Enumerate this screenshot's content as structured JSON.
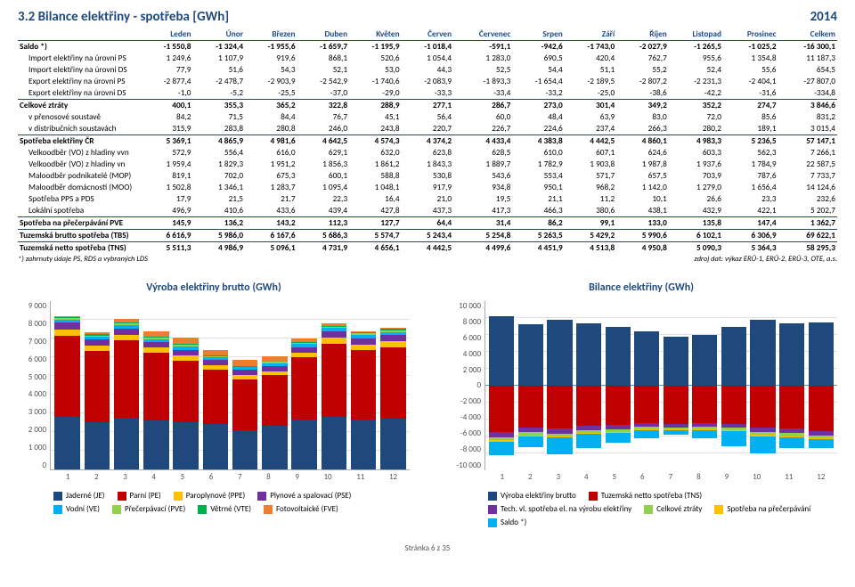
{
  "header": {
    "title": "3.2 Bilance elektřiny - spotřeba [GWh]",
    "year": "2014"
  },
  "months": [
    "Leden",
    "Únor",
    "Březen",
    "Duben",
    "Květen",
    "Červen",
    "Červenec",
    "Srpen",
    "Září",
    "Říjen",
    "Listopad",
    "Prosinec",
    "Celkem"
  ],
  "rows": [
    {
      "label": "Saldo *)",
      "bold": true,
      "vals": [
        "-1 550,8",
        "-1 324,4",
        "-1 955,6",
        "-1 659,7",
        "-1 195,9",
        "-1 018,4",
        "-591,1",
        "-942,6",
        "-1 743,0",
        "-2 027,9",
        "-1 265,5",
        "-1 025,2",
        "-16 300,1"
      ]
    },
    {
      "label": "Import elektřiny na úrovni PS",
      "indent": 1,
      "vals": [
        "1 249,6",
        "1 107,9",
        "919,6",
        "868,1",
        "520,6",
        "1 054,4",
        "1 283,0",
        "690,5",
        "420,4",
        "762,7",
        "955,6",
        "1 354,8",
        "11 187,3"
      ]
    },
    {
      "label": "Import elektřiny na úrovni DS",
      "indent": 1,
      "vals": [
        "77,9",
        "51,6",
        "54,3",
        "52,1",
        "53,0",
        "44,3",
        "52,5",
        "54,4",
        "51,1",
        "55,2",
        "52,4",
        "55,6",
        "654,5"
      ]
    },
    {
      "label": "Export elektřiny na úrovni PS",
      "indent": 1,
      "vals": [
        "-2 877,4",
        "-2 478,7",
        "-2 903,9",
        "-2 542,9",
        "-1 740,6",
        "-2 083,9",
        "-1 893,3",
        "-1 654,4",
        "-2 189,5",
        "-2 807,2",
        "-2 231,3",
        "-2 404,1",
        "-27 807,0"
      ]
    },
    {
      "label": "Export elektřiny na úrovni DS",
      "indent": 1,
      "vals": [
        "-1,0",
        "-5,2",
        "-25,5",
        "-37,0",
        "-29,0",
        "-33,3",
        "-33,4",
        "-33,2",
        "-25,0",
        "-38,6",
        "-42,2",
        "-31,6",
        "-334,8"
      ]
    },
    {
      "label": "Celkové ztráty",
      "bold": true,
      "line": true,
      "vals": [
        "400,1",
        "355,3",
        "365,2",
        "322,8",
        "288,9",
        "277,1",
        "286,7",
        "273,0",
        "301,4",
        "349,2",
        "352,2",
        "274,7",
        "3 846,6"
      ]
    },
    {
      "label": "v přenosové soustavě",
      "indent": 1,
      "vals": [
        "84,2",
        "71,5",
        "84,4",
        "76,7",
        "45,1",
        "56,4",
        "60,0",
        "48,4",
        "63,9",
        "83,0",
        "72,0",
        "85,6",
        "831,2"
      ]
    },
    {
      "label": "v distribučních soustavách",
      "indent": 1,
      "vals": [
        "315,9",
        "283,8",
        "280,8",
        "246,0",
        "243,8",
        "220,7",
        "226,7",
        "224,6",
        "237,4",
        "266,3",
        "280,2",
        "189,1",
        "3 015,4"
      ]
    },
    {
      "label": "Spotřeba elektřiny ČR",
      "bold": true,
      "line": true,
      "vals": [
        "5 369,1",
        "4 865,9",
        "4 981,6",
        "4 642,5",
        "4 574,3",
        "4 374,2",
        "4 433,4",
        "4 383,8",
        "4 442,5",
        "4 860,1",
        "4 983,3",
        "5 236,5",
        "57 147,1"
      ]
    },
    {
      "label": "Velkoodběr (VO) z hladiny vvn",
      "indent": 1,
      "vals": [
        "572,9",
        "556,4",
        "616,0",
        "629,1",
        "632,0",
        "623,8",
        "628,5",
        "610,0",
        "607,1",
        "624,6",
        "603,3",
        "562,3",
        "7 266,1"
      ]
    },
    {
      "label": "Velkoodběr (VO) z hladiny vn",
      "indent": 1,
      "vals": [
        "1 959,4",
        "1 829,3",
        "1 951,2",
        "1 856,3",
        "1 861,2",
        "1 843,3",
        "1 889,7",
        "1 782,9",
        "1 903,8",
        "1 987,8",
        "1 937,6",
        "1 784,9",
        "22 587,5"
      ]
    },
    {
      "label": "Maloodběr podnikatelé (MOP)",
      "indent": 1,
      "vals": [
        "819,1",
        "702,0",
        "675,3",
        "600,1",
        "588,8",
        "530,8",
        "543,6",
        "553,4",
        "571,7",
        "657,5",
        "703,9",
        "787,6",
        "7 733,7"
      ]
    },
    {
      "label": "Maloodběr domácnosti (MOO)",
      "indent": 1,
      "vals": [
        "1 502,8",
        "1 346,1",
        "1 283,7",
        "1 095,4",
        "1 048,1",
        "917,9",
        "934,8",
        "950,1",
        "968,2",
        "1 142,0",
        "1 279,0",
        "1 656,4",
        "14 124,6"
      ]
    },
    {
      "label": "Spotřeba PPS a PDS",
      "indent": 1,
      "vals": [
        "17,9",
        "21,5",
        "21,7",
        "22,3",
        "16,4",
        "21,0",
        "19,5",
        "21,1",
        "11,2",
        "10,1",
        "26,6",
        "23,3",
        "232,6"
      ]
    },
    {
      "label": "Lokální spotřeba",
      "indent": 1,
      "vals": [
        "496,9",
        "410,6",
        "433,6",
        "439,4",
        "427,8",
        "437,3",
        "417,3",
        "466,3",
        "380,6",
        "438,1",
        "432,9",
        "422,1",
        "5 202,7"
      ]
    },
    {
      "label": "Spotřeba na přečerpávání PVE",
      "bold": true,
      "line": true,
      "vals": [
        "145,9",
        "136,2",
        "143,2",
        "112,3",
        "127,7",
        "64,4",
        "31,4",
        "86,2",
        "99,1",
        "133,0",
        "135,8",
        "147,4",
        "1 362,7"
      ]
    },
    {
      "label": "Tuzemská brutto spotřeba (TBS)",
      "bold": true,
      "line": true,
      "vals": [
        "6 616,9",
        "5 986,0",
        "6 167,6",
        "5 686,3",
        "5 574,7",
        "5 243,4",
        "5 254,8",
        "5 263,5",
        "5 429,2",
        "5 990,6",
        "6 102,1",
        "6 306,9",
        "69 622,1"
      ]
    },
    {
      "label": "Tuzemská netto spotřeba (TNS)",
      "bold": true,
      "line": true,
      "vals": [
        "5 511,3",
        "4 986,9",
        "5 096,1",
        "4 731,9",
        "4 656,1",
        "4 442,5",
        "4 499,6",
        "4 451,9",
        "4 513,8",
        "4 950,8",
        "5 090,3",
        "5 364,3",
        "58 295,3"
      ]
    }
  ],
  "footnote_left": "*) zahrnuty údaje PS, RDS a vybraných LDS",
  "footnote_right": "zdroj dat: výkaz ERÚ-1, ERÚ-2, ERÚ-3, OTE, a.s.",
  "page_footer": "Stránka 6 z 35",
  "chart1": {
    "title": "Výroba elektřiny brutto (GWh)",
    "ylim": [
      0,
      9000
    ],
    "yticks": [
      0,
      1000,
      2000,
      3000,
      4000,
      5000,
      6000,
      7000,
      8000,
      9000
    ],
    "ytick_labels": [
      "0",
      "1 000",
      "2 000",
      "3 000",
      "4 000",
      "5 000",
      "6 000",
      "7 000",
      "8 000",
      "9 000"
    ],
    "height": 190,
    "colors": {
      "je": "#1f497d",
      "pe": "#c00000",
      "ppe": "#ffc000",
      "pse": "#7030a0",
      "ve": "#00b0f0",
      "pve": "#92d050",
      "vte": "#00b050",
      "fve": "#ed7d31"
    },
    "series_order": [
      "je",
      "pe",
      "ppe",
      "pse",
      "ve",
      "pve",
      "vte",
      "fve"
    ],
    "legend": [
      {
        "k": "je",
        "label": "Jaderné (JE)"
      },
      {
        "k": "pe",
        "label": "Parní (PE)"
      },
      {
        "k": "ppe",
        "label": "Paroplynové (PPE)"
      },
      {
        "k": "pse",
        "label": "Plynové a spalovací (PSE)"
      },
      {
        "k": "ve",
        "label": "Vodní (VE)"
      },
      {
        "k": "pve",
        "label": "Přečerpávací (PVE)"
      },
      {
        "k": "vte",
        "label": "Větrné (VTE)"
      },
      {
        "k": "fve",
        "label": "Fotovoltaické (FVE)"
      }
    ],
    "data": [
      {
        "je": 2800,
        "pe": 4300,
        "ppe": 350,
        "pse": 350,
        "ve": 150,
        "pve": 100,
        "vte": 70,
        "fve": 50
      },
      {
        "je": 2500,
        "pe": 3800,
        "ppe": 300,
        "pse": 300,
        "ve": 140,
        "pve": 90,
        "vte": 60,
        "fve": 120
      },
      {
        "je": 2750,
        "pe": 4100,
        "ppe": 320,
        "pse": 320,
        "ve": 180,
        "pve": 95,
        "vte": 55,
        "fve": 200
      },
      {
        "je": 2600,
        "pe": 3600,
        "ppe": 280,
        "pse": 280,
        "ve": 170,
        "pve": 80,
        "vte": 45,
        "fve": 290
      },
      {
        "je": 2500,
        "pe": 3300,
        "ppe": 260,
        "pse": 300,
        "ve": 200,
        "pve": 85,
        "vte": 40,
        "fve": 320
      },
      {
        "je": 2400,
        "pe": 2900,
        "ppe": 240,
        "pse": 280,
        "ve": 160,
        "pve": 50,
        "vte": 35,
        "fve": 300
      },
      {
        "je": 2100,
        "pe": 2700,
        "ppe": 220,
        "pse": 270,
        "ve": 140,
        "pve": 40,
        "vte": 30,
        "fve": 330
      },
      {
        "je": 2300,
        "pe": 2700,
        "ppe": 230,
        "pse": 280,
        "ve": 150,
        "pve": 60,
        "vte": 30,
        "fve": 270
      },
      {
        "je": 2650,
        "pe": 3300,
        "ppe": 260,
        "pse": 290,
        "ve": 170,
        "pve": 70,
        "vte": 40,
        "fve": 210
      },
      {
        "je": 2800,
        "pe": 3900,
        "ppe": 300,
        "pse": 320,
        "ve": 190,
        "pve": 90,
        "vte": 50,
        "fve": 130
      },
      {
        "je": 2650,
        "pe": 3700,
        "ppe": 290,
        "pse": 340,
        "ve": 160,
        "pve": 95,
        "vte": 55,
        "fve": 60
      },
      {
        "je": 2700,
        "pe": 3800,
        "ppe": 310,
        "pse": 350,
        "ve": 150,
        "pve": 100,
        "vte": 65,
        "fve": 40
      }
    ]
  },
  "chart2": {
    "title": "Bilance elektřiny (GWh)",
    "ylim": [
      -10000,
      10000
    ],
    "yticks": [
      -10000,
      -8000,
      -6000,
      -4000,
      -2000,
      0,
      2000,
      4000,
      6000,
      8000,
      10000
    ],
    "ytick_labels": [
      "-10 000",
      "-8 000",
      "-6 000",
      "-4 000",
      "-2 000",
      "0",
      "2 000",
      "4 000",
      "6 000",
      "8 000",
      "10 000"
    ],
    "height": 190,
    "colors": {
      "brutto": "#1f497d",
      "tns": "#c00000",
      "tech": "#7030a0",
      "ztraty": "#92d050",
      "precerp": "#ffc000",
      "saldo": "#00b0f0"
    },
    "legend": [
      {
        "k": "brutto",
        "label": "Výroba elektřiny brutto"
      },
      {
        "k": "tns",
        "label": "Tuzemská netto spotřeba (TNS)"
      },
      {
        "k": "tech",
        "label": "Tech. vl. spotřeba el. na výrobu elektřiny"
      },
      {
        "k": "ztraty",
        "label": "Celkové ztráty"
      },
      {
        "k": "precerp",
        "label": "Spotřeba na přečerpávání"
      },
      {
        "k": "saldo",
        "label": "Saldo *)"
      }
    ],
    "data": [
      {
        "brutto": 8170,
        "tns": -5511,
        "tech": -560,
        "ztraty": -400,
        "precerp": -146,
        "saldo": -1551
      },
      {
        "brutto": 7310,
        "tns": -4987,
        "tech": -510,
        "ztraty": -355,
        "precerp": -136,
        "saldo": -1324
      },
      {
        "brutto": 7820,
        "tns": -5096,
        "tech": -540,
        "ztraty": -365,
        "precerp": -143,
        "saldo": -1956
      },
      {
        "brutto": 7345,
        "tns": -4732,
        "tech": -500,
        "ztraty": -323,
        "precerp": -112,
        "saldo": -1660
      },
      {
        "brutto": 7000,
        "tns": -4656,
        "tech": -480,
        "ztraty": -289,
        "precerp": -128,
        "saldo": -1196
      },
      {
        "brutto": 6385,
        "tns": -4443,
        "tech": -450,
        "ztraty": -277,
        "precerp": -64,
        "saldo": -1018
      },
      {
        "brutto": 5830,
        "tns": -4500,
        "tech": -420,
        "ztraty": -287,
        "precerp": -31,
        "saldo": -591
      },
      {
        "brutto": 6020,
        "tns": -4452,
        "tech": -430,
        "ztraty": -273,
        "precerp": -86,
        "saldo": -943
      },
      {
        "brutto": 6990,
        "tns": -4514,
        "tech": -470,
        "ztraty": -301,
        "precerp": -99,
        "saldo": -1743
      },
      {
        "brutto": 7780,
        "tns": -4951,
        "tech": -530,
        "ztraty": -349,
        "precerp": -133,
        "saldo": -2028
      },
      {
        "brutto": 7350,
        "tns": -5090,
        "tech": -510,
        "ztraty": -352,
        "precerp": -136,
        "saldo": -1266
      },
      {
        "brutto": 7515,
        "tns": -5364,
        "tech": -530,
        "ztraty": -275,
        "precerp": -147,
        "saldo": -1025
      }
    ]
  }
}
